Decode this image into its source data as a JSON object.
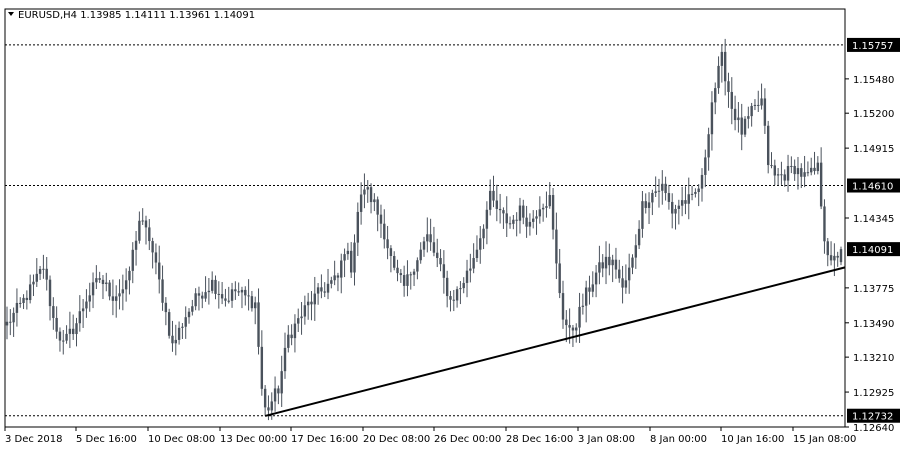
{
  "header": {
    "title": "EURUSD,H4  1.13985 1.14111 1.13961 1.14091"
  },
  "colors": {
    "background": "#ffffff",
    "candle": "#4a525c",
    "trendline": "#000000",
    "dotted_line": "#000000",
    "price_tag_bg": "#000000",
    "price_tag_text": "#ffffff"
  },
  "chart_data": {
    "type": "candlestick",
    "symbol": "EURUSD",
    "timeframe": "H4",
    "ylim": [
      1.1264,
      1.1605
    ],
    "y_ticks": [
      1.1548,
      1.152,
      1.14915,
      1.14345,
      1.13775,
      1.1349,
      1.1321,
      1.12925,
      1.1264
    ],
    "y_tick_labels": [
      "1.15480",
      "1.15200",
      "1.14915",
      "1.14345",
      "1.13775",
      "1.13490",
      "1.13210",
      "1.12925",
      "1.12640"
    ],
    "x_labels": [
      "3 Dec 2018",
      "5 Dec 16:00",
      "10 Dec 08:00",
      "13 Dec 00:00",
      "17 Dec 16:00",
      "20 Dec 08:00",
      "26 Dec 00:00",
      "28 Dec 16:00",
      "3 Jan 08:00",
      "8 Jan 00:00",
      "10 Jan 16:00",
      "15 Jan 08:00"
    ],
    "price_levels": [
      {
        "value": 1.15757,
        "label": "1.15757",
        "style": "dotted"
      },
      {
        "value": 1.1461,
        "label": "1.14610",
        "style": "dotted"
      },
      {
        "value": 1.12732,
        "label": "1.12732",
        "style": "dotted"
      }
    ],
    "current_price": {
      "value": 1.14091,
      "label": "1.14091"
    },
    "trendline": {
      "points": [
        [
          78,
          1.1273
        ],
        [
          250,
          1.1392
        ]
      ]
    },
    "anchors": [
      [
        0,
        1.1348
      ],
      [
        4,
        1.1363
      ],
      [
        8,
        1.138
      ],
      [
        11,
        1.1395
      ],
      [
        14,
        1.1352
      ],
      [
        17,
        1.1331
      ],
      [
        21,
        1.1349
      ],
      [
        24,
        1.1369
      ],
      [
        28,
        1.1385
      ],
      [
        32,
        1.1371
      ],
      [
        36,
        1.1378
      ],
      [
        40,
        1.1433
      ],
      [
        43,
        1.1418
      ],
      [
        47,
        1.137
      ],
      [
        50,
        1.133
      ],
      [
        54,
        1.1355
      ],
      [
        58,
        1.1372
      ],
      [
        62,
        1.1382
      ],
      [
        66,
        1.1368
      ],
      [
        69,
        1.1375
      ],
      [
        72,
        1.137
      ],
      [
        75,
        1.1365
      ],
      [
        77,
        1.1295
      ],
      [
        79,
        1.128
      ],
      [
        82,
        1.1295
      ],
      [
        85,
        1.1338
      ],
      [
        88,
        1.1351
      ],
      [
        91,
        1.1364
      ],
      [
        94,
        1.1372
      ],
      [
        97,
        1.138
      ],
      [
        100,
        1.1385
      ],
      [
        102,
        1.141
      ],
      [
        104,
        1.1395
      ],
      [
        106,
        1.144
      ],
      [
        108,
        1.146
      ],
      [
        111,
        1.1446
      ],
      [
        114,
        1.1423
      ],
      [
        117,
        1.139
      ],
      [
        120,
        1.1378
      ],
      [
        124,
        1.1403
      ],
      [
        127,
        1.1419
      ],
      [
        130,
        1.14
      ],
      [
        134,
        1.1367
      ],
      [
        137,
        1.1378
      ],
      [
        140,
        1.1395
      ],
      [
        143,
        1.142
      ],
      [
        146,
        1.1451
      ],
      [
        149,
        1.1437
      ],
      [
        152,
        1.143
      ],
      [
        155,
        1.144
      ],
      [
        158,
        1.143
      ],
      [
        161,
        1.1446
      ],
      [
        164,
        1.145
      ],
      [
        166,
        1.1395
      ],
      [
        168,
        1.1355
      ],
      [
        170,
        1.134
      ],
      [
        172,
        1.135
      ],
      [
        175,
        1.1372
      ],
      [
        178,
        1.1389
      ],
      [
        181,
        1.14
      ],
      [
        184,
        1.1395
      ],
      [
        186,
        1.1375
      ],
      [
        189,
        1.14
      ],
      [
        192,
        1.1445
      ],
      [
        195,
        1.1455
      ],
      [
        198,
        1.146
      ],
      [
        201,
        1.144
      ],
      [
        204,
        1.1448
      ],
      [
        207,
        1.1449
      ],
      [
        210,
        1.1465
      ],
      [
        213,
        1.153
      ],
      [
        216,
        1.1565
      ],
      [
        219,
        1.1525
      ],
      [
        222,
        1.1505
      ],
      [
        225,
        1.152
      ],
      [
        228,
        1.153
      ],
      [
        230,
        1.148
      ],
      [
        232,
        1.1468
      ],
      [
        235,
        1.147
      ],
      [
        238,
        1.1476
      ],
      [
        241,
        1.1468
      ],
      [
        243,
        1.147
      ],
      [
        245,
        1.1475
      ],
      [
        247,
        1.142
      ],
      [
        249,
        1.1395
      ],
      [
        251,
        1.1405
      ],
      [
        252,
        1.1409
      ]
    ]
  }
}
